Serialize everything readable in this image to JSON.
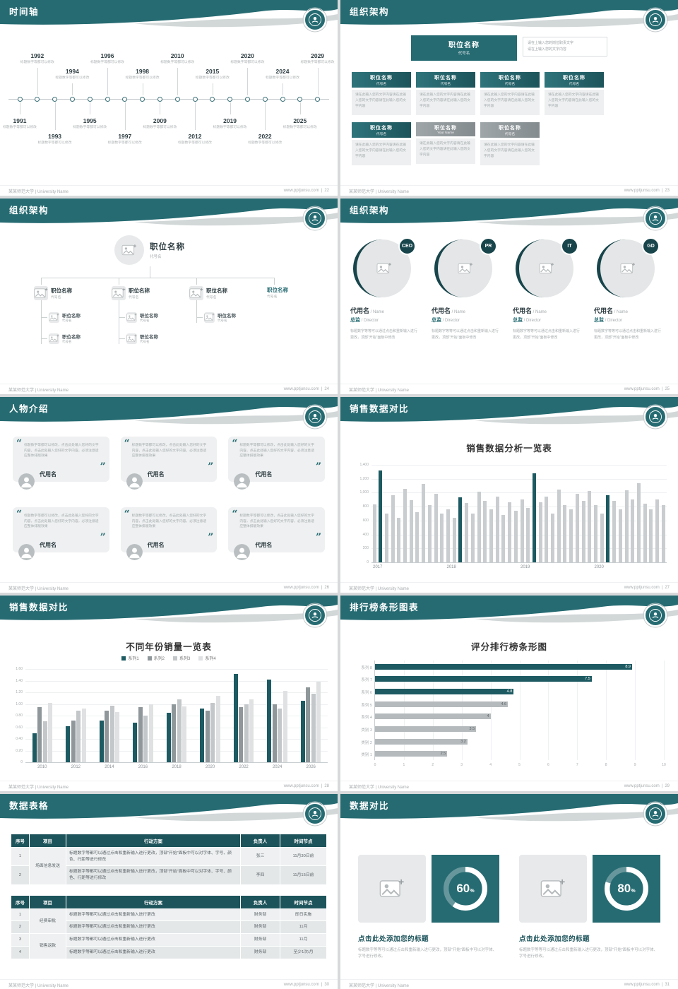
{
  "colors": {
    "teal": "#266b72",
    "teal_dark": "#17454b",
    "teal_deep": "#1d545b",
    "bar_gray": "#c9cdcf",
    "bar_teal": "#1d5a62",
    "bar_mid_gray": "#b5babc"
  },
  "footer": {
    "school": "某某师范大学 | University Name",
    "site": "www.pptjunsu.com",
    "sep": "|"
  },
  "slides": [
    {
      "title": "时间轴",
      "page": "22",
      "caption": "标题数字等都可以修改",
      "years": [
        "1991",
        "1992",
        "1993",
        "1994",
        "1995",
        "1996",
        "1997",
        "1998",
        "2009",
        "2010",
        "2012",
        "2015",
        "2019",
        "2020",
        "2022",
        "2024",
        "2025",
        "2029"
      ]
    },
    {
      "title": "组织架构",
      "page": "23",
      "root_title": "职位名称",
      "root_sub": "代号名",
      "note1": "请在上输入您的岗位职责文字",
      "note2": "请在上输入您的文字内容",
      "cap": "请在此输入您的文字内容请在此输入您的文字内容请在此输入您的文字内容",
      "level1": [
        {
          "title": "职位名称",
          "sub": "代号名"
        },
        {
          "title": "职位名称",
          "sub": "代号名"
        },
        {
          "title": "职位名称",
          "sub": "代号名"
        },
        {
          "title": "职位名称",
          "sub": "代号名"
        },
        {
          "title": "职位名称",
          "sub": "代号名"
        }
      ],
      "level2": [
        {
          "title": "职位名称",
          "sub": "Your Name"
        },
        {
          "title": "职位名称",
          "sub": "代号名"
        }
      ]
    },
    {
      "title": "组织架构",
      "page": "24",
      "root": {
        "title": "职位名称",
        "sub": "代号名"
      },
      "node_title": "职位名称",
      "node_sub": "代号名",
      "nodes": [
        {
          "children": 2
        },
        {
          "children": 2
        },
        {
          "children": 1
        },
        {
          "children": 0,
          "teal": true
        }
      ]
    },
    {
      "title": "组织架构",
      "page": "25",
      "badges": [
        "CEO",
        "PR",
        "IT",
        "GD"
      ],
      "name": "代用名",
      "name_en": "/ Name",
      "post": "总监",
      "post_en": "/ Director",
      "caption": "标题数字等等可以通过点击和重新输入进行更改，顶部“开始”面板中修改"
    },
    {
      "title": "人物介绍",
      "page": "26",
      "quote": "标题数字等都可以修改，点击此处输入您好的文字内容，点击此处输入您好的文字内容，必须注意适应整体排版效果",
      "name": "代用名",
      "card_count": 6
    },
    {
      "title": "销售数据对比",
      "page": "27",
      "chart_data": {
        "type": "bar",
        "title": "销售数据分析一览表",
        "ylim": [
          0,
          1400
        ],
        "yticks": [
          "0",
          "200",
          "400",
          "600",
          "800",
          "1,000",
          "1,200",
          "1,400"
        ],
        "x_groups": [
          "2017",
          "2018",
          "2019",
          "2020"
        ],
        "values": [
          830,
          1320,
          700,
          960,
          640,
          1060,
          890,
          720,
          1130,
          820,
          980,
          700,
          760,
          640,
          930,
          850,
          700,
          1010,
          880,
          760,
          940,
          680,
          860,
          740,
          900,
          780,
          1280,
          860,
          940,
          700,
          1050,
          820,
          760,
          980,
          880,
          1020,
          820,
          700,
          960,
          880,
          760,
          1040,
          900,
          1140,
          840,
          760,
          900,
          820
        ],
        "highlight_indices": [
          1,
          14,
          26,
          38
        ]
      }
    },
    {
      "title": "销售数据对比",
      "page": "28",
      "chart_data": {
        "type": "grouped-bar",
        "title": "不同年份销量一览表",
        "ylim": [
          0,
          1.6
        ],
        "yticks": [
          "0",
          "0.20",
          "0.40",
          "0.60",
          "0.80",
          "1.00",
          "1.20",
          "1.40",
          "1.60"
        ],
        "categories": [
          "2010",
          "2012",
          "2014",
          "2016",
          "2018",
          "2020",
          "2022",
          "2024",
          "2026"
        ],
        "series": [
          {
            "name": "系列1",
            "color": "#1d5a62",
            "values": [
              0.5,
              0.62,
              0.72,
              0.68,
              0.85,
              0.92,
              1.52,
              1.42,
              1.05
            ]
          },
          {
            "name": "系列2",
            "color": "#8f979a",
            "values": [
              0.95,
              0.72,
              0.88,
              0.94,
              1.0,
              0.88,
              0.95,
              1.0,
              1.28
            ]
          },
          {
            "name": "系列3",
            "color": "#c3c7c9",
            "values": [
              0.7,
              0.88,
              0.97,
              0.8,
              1.08,
              1.02,
              1.0,
              0.92,
              1.18
            ]
          },
          {
            "name": "系列4",
            "color": "#dfe1e2",
            "values": [
              1.02,
              0.92,
              0.86,
              1.0,
              0.96,
              1.14,
              1.08,
              1.22,
              1.38
            ]
          }
        ]
      }
    },
    {
      "title": "排行榜条形图表",
      "page": "29",
      "chart_data": {
        "type": "hbar",
        "title": "评分排行榜条形图",
        "xlim": [
          0,
          10
        ],
        "xticks": [
          "0",
          "1",
          "2",
          "3",
          "4",
          "5",
          "6",
          "7",
          "8",
          "9",
          "10"
        ],
        "categories": [
          "系列 8",
          "系列 7",
          "系列 6",
          "系列 5",
          "系列 4",
          "类别 3",
          "类别 2",
          "类别 1"
        ],
        "values": [
          8.9,
          7.5,
          4.8,
          4.6,
          4,
          3.5,
          3.2,
          2.5
        ],
        "bar_colors": [
          "#1d5a62",
          "#1d5a62",
          "#1d5a62",
          "#b5babc",
          "#b5babc",
          "#b5babc",
          "#b5babc",
          "#b5babc"
        ]
      }
    },
    {
      "title": "数据表格",
      "page": "30",
      "tables": [
        {
          "headers": [
            "序号",
            "项目",
            "行动方案",
            "负责人",
            "时间节点"
          ],
          "rows": [
            {
              "no": "1",
              "project": "场面信息发送",
              "span": 2,
              "plan": "标题数字等都可以通过点击和重新输入进行更改，顶部“开始”面板中可以对字体、字号、颜色、行距等进行修改",
              "owner": "张三",
              "time": "11月30日前"
            },
            {
              "no": "2",
              "plan": "标题数字等都可以通过点击和重新输入进行更改，顶部“开始”面板中可以对字体、字号、颜色、行距等进行修改",
              "owner": "李四",
              "time": "11月15日前"
            }
          ]
        },
        {
          "headers": [
            "序号",
            "项目",
            "行动方案",
            "负责人",
            "时间节点"
          ],
          "rows": [
            {
              "no": "1",
              "project": "经费审批",
              "span": 2,
              "plan": "标题数字等都可以通过点击和重新输入进行更改",
              "owner": "财务部",
              "time": "即日实施"
            },
            {
              "no": "2",
              "plan": "标题数字等都可以通过点击和重新输入进行更改",
              "owner": "财务部",
              "time": "11月"
            },
            {
              "no": "3",
              "project": "销售返款",
              "span": 2,
              "plan": "标题数字等都可以通过点击和重新输入进行更改",
              "owner": "财务部",
              "time": "11月"
            },
            {
              "no": "4",
              "plan": "标题数字等都可以通过点击和重新输入进行更改",
              "owner": "财务部",
              "time": "至少1次/月"
            }
          ]
        }
      ]
    },
    {
      "title": "数据对比",
      "page": "31",
      "items": [
        {
          "percent": 60,
          "value": "60",
          "title": "点击此处添加您的标题",
          "caption": "标题数字等等可以通过点击和重新输入进行更改，顶部“开始”面板中可以对字体、字号进行修改。"
        },
        {
          "percent": 80,
          "value": "80",
          "title": "点击此处添加您的标题",
          "caption": "标题数字等等可以通过点击和重新输入进行更改，顶部“开始”面板中可以对字体、字号进行修改。"
        }
      ]
    }
  ]
}
